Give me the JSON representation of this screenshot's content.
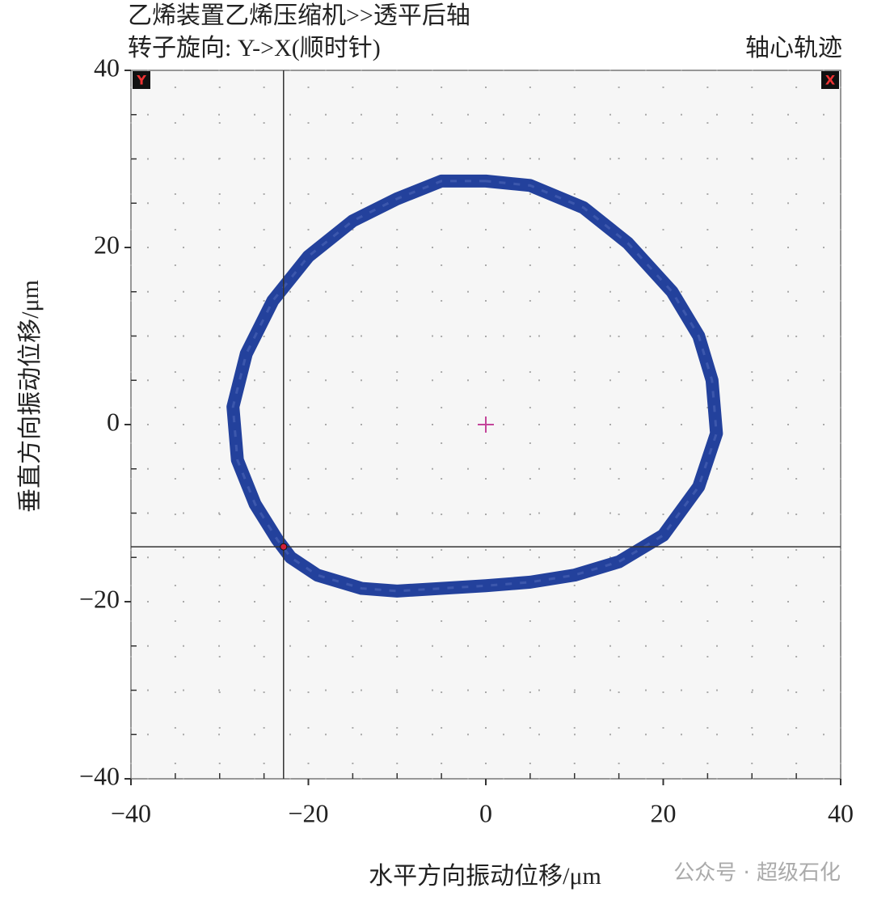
{
  "chart_data": {
    "type": "line",
    "title": "乙烯装置乙烯压缩机>>透平后轴",
    "subtitle": "转子旋向: Y->X(顺时针)",
    "corner_title": "轴心轨迹",
    "x_label": "水平方向振动位移/μm",
    "y_label": "垂直方向振动位移/μm",
    "corner_marks": [
      "Y",
      "X"
    ],
    "watermark": "公众号 · 超级石化",
    "xlim": [
      -40,
      40
    ],
    "ylim": [
      -40,
      40
    ],
    "xticks": [
      {
        "value": -40,
        "label": "−40"
      },
      {
        "value": -20,
        "label": "−20"
      },
      0,
      20,
      40
    ],
    "yticks": [
      {
        "value": -40,
        "label": "−40"
      },
      {
        "value": -20,
        "label": "−20"
      },
      0,
      20,
      40
    ],
    "minor_ticks": [
      -35,
      -30,
      -25,
      -15,
      -10,
      -5,
      5,
      10,
      15,
      25,
      30,
      35
    ],
    "grid": true,
    "series": [
      {
        "color": "#23419c",
        "x": [
          0,
          -5,
          -10,
          -15,
          -20,
          -24,
          -27,
          -28.5,
          -28,
          -26,
          -23.5,
          -22,
          -19,
          -14,
          -10,
          -5,
          0,
          5,
          10,
          15,
          20,
          24,
          26,
          25.5,
          24,
          21,
          16,
          11,
          5,
          0
        ],
        "y": [
          27.5,
          27.5,
          25.5,
          23,
          19,
          14,
          8,
          2,
          -4,
          -9,
          -13,
          -15,
          -17,
          -18.5,
          -18.8,
          -18.5,
          -18.2,
          -17.8,
          -17,
          -15.5,
          -12.5,
          -7,
          -1,
          5,
          10,
          15,
          20.5,
          24.5,
          27,
          27.5
        ]
      }
    ],
    "cursor": {
      "x": -22.8,
      "y": -13.8
    },
    "center_marker": {
      "x": 0,
      "y": 0
    }
  }
}
